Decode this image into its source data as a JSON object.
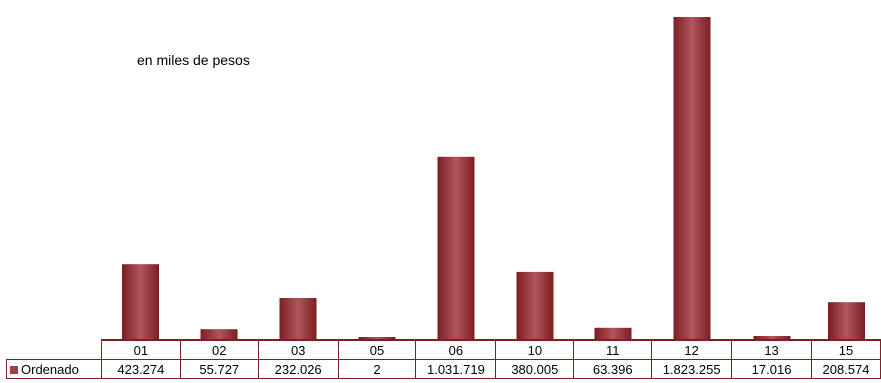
{
  "chart_data": {
    "type": "bar",
    "title": "",
    "subtitle": "en miles de pesos",
    "xlabel": "",
    "ylabel": "",
    "categories": [
      "01",
      "02",
      "03",
      "05",
      "06",
      "10",
      "11",
      "12",
      "13",
      "15"
    ],
    "series": [
      {
        "name": "Ordenado",
        "values": [
          423274,
          55727,
          232026,
          2,
          1031719,
          380005,
          63396,
          1823255,
          17016,
          208574
        ],
        "labels": [
          "423.274",
          "55.727",
          "232.026",
          "2",
          "1.031.719",
          "380.005",
          "63.396",
          "1.823.255",
          "17.016",
          "208.574"
        ]
      }
    ],
    "ylim": [
      0,
      1823255
    ],
    "grid": false,
    "legend": "data-table",
    "colors": {
      "bar": "#a23f43",
      "bar_dark": "#7b1d22",
      "border": "#7f1f1f"
    }
  }
}
